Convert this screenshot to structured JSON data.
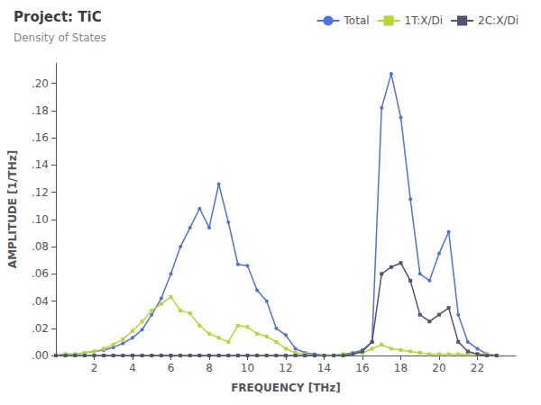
{
  "chart_data": {
    "type": "line",
    "title": "Project: TiC",
    "subtitle": "Density of States",
    "xlabel": "FREQUENCY [THz]",
    "ylabel": "AMPLITUDE [1/THz]",
    "xlim": [
      0,
      24
    ],
    "ylim": [
      0,
      0.215
    ],
    "xticks": [
      2,
      4,
      6,
      8,
      10,
      12,
      14,
      16,
      18,
      20,
      22
    ],
    "yticks": [
      {
        "value": 0.0,
        "label": ".00"
      },
      {
        "value": 0.02,
        "label": ".02"
      },
      {
        "value": 0.04,
        "label": ".04"
      },
      {
        "value": 0.06,
        "label": ".06"
      },
      {
        "value": 0.08,
        "label": ".08"
      },
      {
        "value": 0.1,
        "label": ".10"
      },
      {
        "value": 0.12,
        "label": ".12"
      },
      {
        "value": 0.14,
        "label": ".14"
      },
      {
        "value": 0.16,
        "label": ".16"
      },
      {
        "value": 0.18,
        "label": ".18"
      },
      {
        "value": 0.2,
        "label": ".20"
      }
    ],
    "grid": false,
    "legend": "upper right",
    "x": [
      0.0,
      0.5,
      1.0,
      1.5,
      2.0,
      2.5,
      3.0,
      3.5,
      4.0,
      4.5,
      5.0,
      5.5,
      6.0,
      6.5,
      7.0,
      7.5,
      8.0,
      8.5,
      9.0,
      9.5,
      10.0,
      10.5,
      11.0,
      11.5,
      12.0,
      12.5,
      13.0,
      13.5,
      14.0,
      14.5,
      15.0,
      15.5,
      16.0,
      16.5,
      17.0,
      17.5,
      18.0,
      18.5,
      19.0,
      19.5,
      20.0,
      20.5,
      21.0,
      21.5,
      22.0,
      22.5,
      23.0
    ],
    "series": [
      {
        "name": "Total",
        "marker": "circle",
        "values": [
          0.0,
          0.001,
          0.001,
          0.002,
          0.003,
          0.004,
          0.006,
          0.009,
          0.013,
          0.019,
          0.03,
          0.042,
          0.06,
          0.08,
          0.094,
          0.108,
          0.094,
          0.126,
          0.098,
          0.067,
          0.066,
          0.048,
          0.04,
          0.02,
          0.015,
          0.005,
          0.002,
          0.001,
          0.0,
          0.0,
          0.001,
          0.002,
          0.004,
          0.01,
          0.182,
          0.207,
          0.175,
          0.115,
          0.06,
          0.055,
          0.075,
          0.091,
          0.03,
          0.01,
          0.005,
          0.001,
          0.0
        ]
      },
      {
        "name": "1T:X/Di",
        "marker": "square",
        "values": [
          0.0,
          0.001,
          0.001,
          0.002,
          0.003,
          0.005,
          0.008,
          0.012,
          0.018,
          0.025,
          0.033,
          0.038,
          0.043,
          0.033,
          0.031,
          0.022,
          0.016,
          0.013,
          0.01,
          0.022,
          0.021,
          0.016,
          0.014,
          0.01,
          0.005,
          0.002,
          0.001,
          0.0,
          0.0,
          0.0,
          0.001,
          0.001,
          0.002,
          0.005,
          0.008,
          0.005,
          0.004,
          0.003,
          0.002,
          0.001,
          0.001,
          0.001,
          0.001,
          0.001,
          0.001,
          0.001,
          0.0
        ]
      },
      {
        "name": "2C:X/Di",
        "marker": "square",
        "values": [
          0.0,
          0.0,
          0.0,
          0.0,
          0.0,
          0.0,
          0.0,
          0.0,
          0.0,
          0.0,
          0.0,
          0.0,
          0.0,
          0.0,
          0.0,
          0.0,
          0.0,
          0.0,
          0.0,
          0.0,
          0.0,
          0.0,
          0.0,
          0.0,
          0.0,
          0.0,
          0.0,
          0.0,
          0.0,
          0.0,
          0.0,
          0.001,
          0.003,
          0.01,
          0.06,
          0.065,
          0.068,
          0.055,
          0.03,
          0.025,
          0.03,
          0.035,
          0.01,
          0.003,
          0.001,
          0.0,
          0.0
        ]
      }
    ]
  }
}
